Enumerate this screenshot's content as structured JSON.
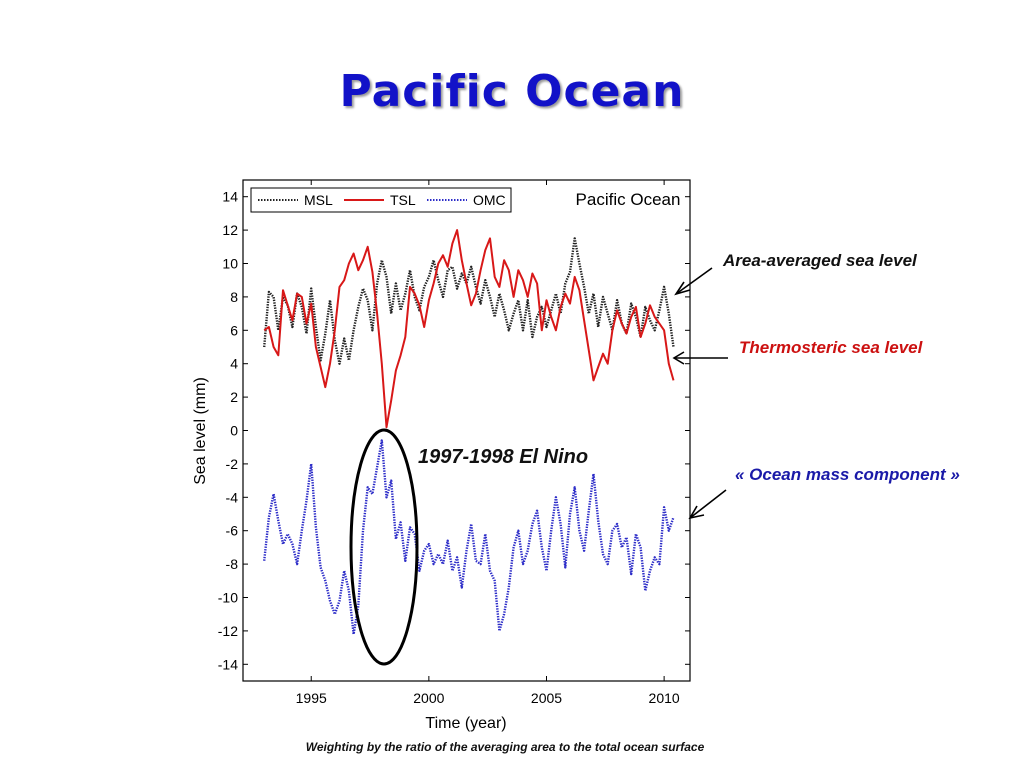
{
  "slide": {
    "title": "Pacific Ocean",
    "footer": "Weighting by the ratio of the averaging area to the total ocean surface",
    "annotations": {
      "msl": "Area-averaged sea level",
      "tsl": "Thermosteric sea level",
      "omc": "« Ocean mass component »",
      "elnino": "1997-1998 El Nino"
    },
    "annotation_colors": {
      "msl": "#111111",
      "tsl": "#cc1111",
      "omc": "#1a1aa8",
      "elnino": "#111111"
    }
  },
  "chart_data": {
    "type": "line",
    "title": "Pacific Ocean",
    "xlabel": "Time (year)",
    "ylabel": "Sea level (mm)",
    "xlim": [
      1992.1,
      2011.1
    ],
    "ylim": [
      -15,
      15
    ],
    "xticks": [
      1995,
      2000,
      2005,
      2010
    ],
    "yticks": [
      14,
      12,
      10,
      8,
      6,
      4,
      2,
      0,
      -2,
      -4,
      -6,
      -8,
      -10,
      -12,
      -14
    ],
    "grid": false,
    "legend_position": "top-left",
    "series": [
      {
        "name": "MSL",
        "color": "#222222",
        "style": "dotted",
        "x": [
          1993.0,
          1993.2,
          1993.4,
          1993.6,
          1993.8,
          1994.0,
          1994.2,
          1994.4,
          1994.6,
          1994.8,
          1995.0,
          1995.2,
          1995.4,
          1995.6,
          1995.8,
          1996.0,
          1996.2,
          1996.4,
          1996.6,
          1996.8,
          1997.0,
          1997.2,
          1997.4,
          1997.6,
          1997.8,
          1998.0,
          1998.2,
          1998.4,
          1998.6,
          1998.8,
          1999.0,
          1999.2,
          1999.4,
          1999.6,
          1999.8,
          2000.0,
          2000.2,
          2000.4,
          2000.6,
          2000.8,
          2001.0,
          2001.2,
          2001.4,
          2001.6,
          2001.8,
          2002.0,
          2002.2,
          2002.4,
          2002.6,
          2002.8,
          2003.0,
          2003.2,
          2003.4,
          2003.6,
          2003.8,
          2004.0,
          2004.2,
          2004.4,
          2004.6,
          2004.8,
          2005.0,
          2005.2,
          2005.4,
          2005.6,
          2005.8,
          2006.0,
          2006.2,
          2006.4,
          2006.6,
          2006.8,
          2007.0,
          2007.2,
          2007.4,
          2007.6,
          2007.8,
          2008.0,
          2008.2,
          2008.4,
          2008.6,
          2008.8,
          2009.0,
          2009.2,
          2009.4,
          2009.6,
          2009.8,
          2010.0,
          2010.2,
          2010.4
        ],
        "values": [
          5.0,
          8.3,
          8.0,
          6.0,
          8.0,
          7.5,
          6.2,
          8.2,
          7.4,
          5.8,
          8.5,
          6.2,
          4.2,
          5.8,
          7.8,
          5.4,
          4.0,
          5.5,
          4.2,
          6.0,
          7.4,
          8.5,
          7.8,
          6.0,
          8.8,
          10.2,
          9.2,
          7.0,
          8.8,
          7.2,
          8.2,
          9.6,
          8.0,
          7.2,
          8.6,
          9.2,
          10.2,
          9.0,
          8.0,
          9.6,
          9.8,
          8.5,
          9.4,
          8.8,
          9.8,
          8.6,
          7.6,
          9.0,
          8.0,
          6.8,
          8.2,
          7.2,
          6.0,
          7.0,
          7.8,
          6.0,
          7.8,
          5.6,
          6.8,
          7.4,
          6.2,
          7.2,
          8.2,
          7.0,
          8.8,
          9.5,
          11.5,
          10.0,
          8.6,
          7.0,
          8.2,
          6.2,
          8.0,
          7.0,
          6.0,
          7.8,
          6.4,
          5.8,
          7.6,
          6.8,
          5.6,
          7.4,
          6.6,
          6.0,
          7.2,
          8.6,
          7.0,
          5.0
        ]
      },
      {
        "name": "TSL",
        "color": "#d81818",
        "style": "solid",
        "x": [
          1993.0,
          1993.2,
          1993.4,
          1993.6,
          1993.8,
          1994.0,
          1994.2,
          1994.4,
          1994.6,
          1994.8,
          1995.0,
          1995.2,
          1995.4,
          1995.6,
          1995.8,
          1996.0,
          1996.2,
          1996.4,
          1996.6,
          1996.8,
          1997.0,
          1997.2,
          1997.4,
          1997.6,
          1997.8,
          1998.0,
          1998.2,
          1998.4,
          1998.6,
          1998.8,
          1999.0,
          1999.2,
          1999.4,
          1999.6,
          1999.8,
          2000.0,
          2000.2,
          2000.4,
          2000.6,
          2000.8,
          2001.0,
          2001.2,
          2001.4,
          2001.6,
          2001.8,
          2002.0,
          2002.2,
          2002.4,
          2002.6,
          2002.8,
          2003.0,
          2003.2,
          2003.4,
          2003.6,
          2003.8,
          2004.0,
          2004.2,
          2004.4,
          2004.6,
          2004.8,
          2005.0,
          2005.2,
          2005.4,
          2005.6,
          2005.8,
          2006.0,
          2006.2,
          2006.4,
          2006.6,
          2006.8,
          2007.0,
          2007.2,
          2007.4,
          2007.6,
          2007.8,
          2008.0,
          2008.2,
          2008.4,
          2008.6,
          2008.8,
          2009.0,
          2009.2,
          2009.4,
          2009.6,
          2009.8,
          2010.0,
          2010.2,
          2010.4
        ],
        "values": [
          6.0,
          6.2,
          5.0,
          4.5,
          8.4,
          7.5,
          6.6,
          8.2,
          8.0,
          6.4,
          7.6,
          5.0,
          3.8,
          2.6,
          4.0,
          6.0,
          8.6,
          9.0,
          10.0,
          10.6,
          9.6,
          10.2,
          11.0,
          9.5,
          7.0,
          4.0,
          0.2,
          1.8,
          3.6,
          4.5,
          5.6,
          8.6,
          8.2,
          7.5,
          6.2,
          7.8,
          8.8,
          10.0,
          10.5,
          9.8,
          11.2,
          12.0,
          10.2,
          8.8,
          7.5,
          8.2,
          9.6,
          10.8,
          11.5,
          9.2,
          8.6,
          10.2,
          9.6,
          8.0,
          9.6,
          9.0,
          8.0,
          9.4,
          8.8,
          6.0,
          7.8,
          6.8,
          6.0,
          7.4,
          8.2,
          7.6,
          9.2,
          8.4,
          6.6,
          4.8,
          3.0,
          3.8,
          4.6,
          4.0,
          6.0,
          7.2,
          6.4,
          5.8,
          6.8,
          7.4,
          5.6,
          6.4,
          7.5,
          6.8,
          6.4,
          6.0,
          4.0,
          3.0
        ]
      },
      {
        "name": "OMC",
        "color": "#2c2cc8",
        "style": "dotted",
        "x": [
          1993.0,
          1993.2,
          1993.4,
          1993.6,
          1993.8,
          1994.0,
          1994.2,
          1994.4,
          1994.6,
          1994.8,
          1995.0,
          1995.2,
          1995.4,
          1995.6,
          1995.8,
          1996.0,
          1996.2,
          1996.4,
          1996.6,
          1996.8,
          1997.0,
          1997.2,
          1997.4,
          1997.6,
          1997.8,
          1998.0,
          1998.2,
          1998.4,
          1998.6,
          1998.8,
          1999.0,
          1999.2,
          1999.4,
          1999.6,
          1999.8,
          2000.0,
          2000.2,
          2000.4,
          2000.6,
          2000.8,
          2001.0,
          2001.2,
          2001.4,
          2001.6,
          2001.8,
          2002.0,
          2002.2,
          2002.4,
          2002.6,
          2002.8,
          2003.0,
          2003.2,
          2003.4,
          2003.6,
          2003.8,
          2004.0,
          2004.2,
          2004.4,
          2004.6,
          2004.8,
          2005.0,
          2005.2,
          2005.4,
          2005.6,
          2005.8,
          2006.0,
          2006.2,
          2006.4,
          2006.6,
          2006.8,
          2007.0,
          2007.2,
          2007.4,
          2007.6,
          2007.8,
          2008.0,
          2008.2,
          2008.4,
          2008.6,
          2008.8,
          2009.0,
          2009.2,
          2009.4,
          2009.6,
          2009.8,
          2010.0,
          2010.2,
          2010.4
        ],
        "values": [
          -7.8,
          -5.2,
          -3.8,
          -5.4,
          -6.8,
          -6.2,
          -6.8,
          -8.0,
          -6.0,
          -4.2,
          -2.0,
          -5.8,
          -8.2,
          -9.0,
          -10.2,
          -11.0,
          -10.2,
          -8.4,
          -9.6,
          -12.2,
          -10.5,
          -6.0,
          -3.4,
          -3.8,
          -2.2,
          -0.6,
          -4.0,
          -3.0,
          -6.5,
          -5.5,
          -7.8,
          -5.8,
          -6.2,
          -8.4,
          -7.2,
          -6.8,
          -8.0,
          -7.4,
          -8.0,
          -6.6,
          -8.4,
          -7.6,
          -9.4,
          -7.2,
          -5.6,
          -7.8,
          -8.0,
          -6.2,
          -8.4,
          -9.0,
          -12.0,
          -11.0,
          -9.4,
          -7.0,
          -6.0,
          -8.0,
          -7.2,
          -5.6,
          -4.8,
          -7.0,
          -8.4,
          -6.0,
          -4.0,
          -5.6,
          -8.2,
          -5.0,
          -3.4,
          -6.0,
          -7.2,
          -4.8,
          -2.6,
          -5.4,
          -7.4,
          -8.0,
          -6.0,
          -5.6,
          -7.0,
          -6.4,
          -8.6,
          -6.2,
          -7.0,
          -9.6,
          -8.4,
          -7.6,
          -8.0,
          -4.6,
          -6.0,
          -5.2
        ]
      }
    ]
  }
}
